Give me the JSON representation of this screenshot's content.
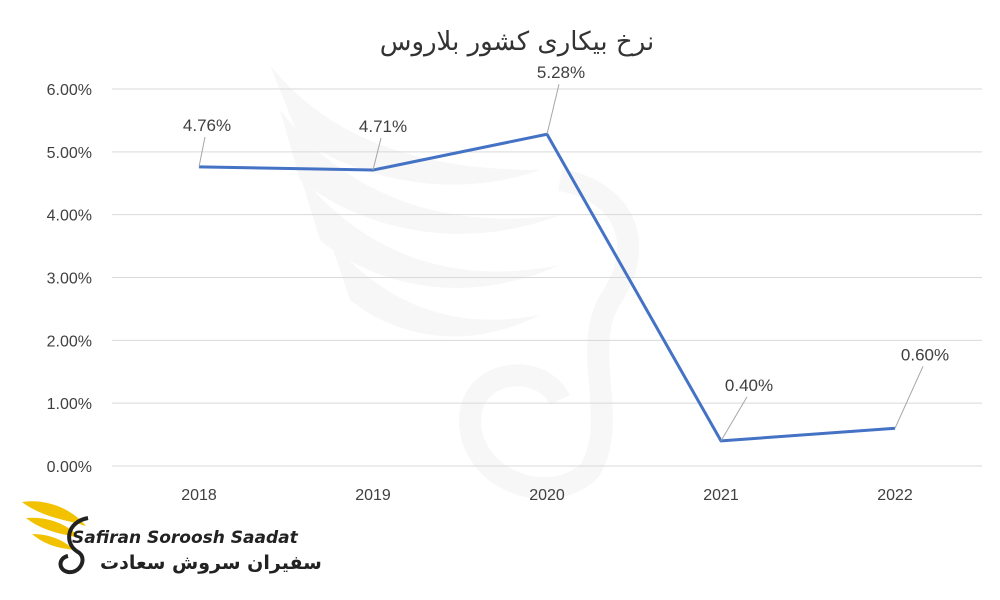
{
  "chart_data": {
    "type": "line",
    "title": "نرخ بیکاری کشور بلاروس",
    "categories": [
      "2018",
      "2019",
      "2020",
      "2021",
      "2022"
    ],
    "values": [
      4.76,
      4.71,
      5.28,
      0.4,
      0.6
    ],
    "data_labels": [
      "4.76%",
      "4.71%",
      "5.28%",
      "0.40%",
      "0.60%"
    ],
    "y_ticks": [
      "0.00%",
      "1.00%",
      "2.00%",
      "3.00%",
      "4.00%",
      "5.00%",
      "6.00%"
    ],
    "ylim": [
      0,
      6
    ],
    "grid": true,
    "legend": "none",
    "line_color": "#4472c4"
  },
  "watermark": {
    "brand_en": "Safiran Soroosh Saadat",
    "brand_fa": "سفیران سروش سعادت",
    "colors": {
      "wing": "#f2c200",
      "text": "#222222"
    }
  }
}
